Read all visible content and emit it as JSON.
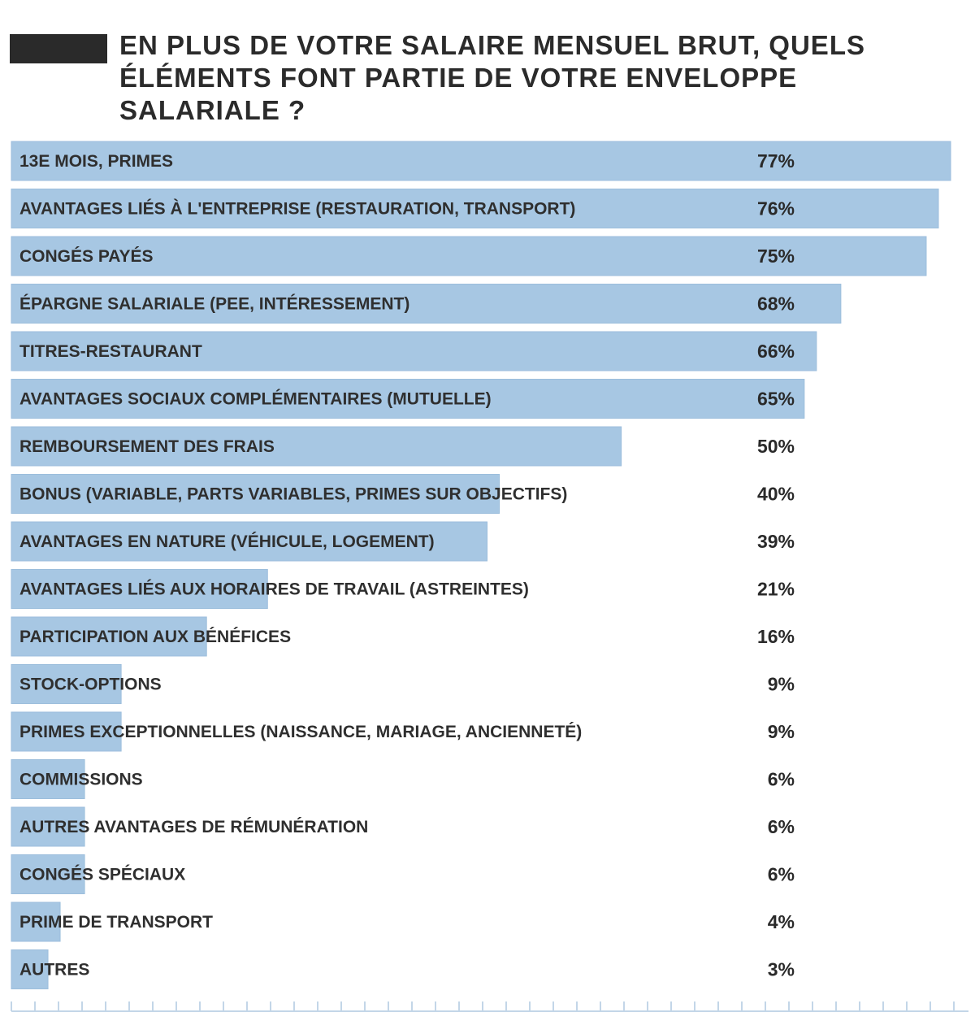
{
  "header": {
    "title": "En plus de votre salaire mensuel brut, quels éléments font partie de votre enveloppe salariale ?",
    "source": ""
  },
  "colors": {
    "bar": "#a7c7e3",
    "bar_edge": "#9cbedc",
    "text": "#2f2f2f",
    "tick": "#c3d6e8"
  },
  "chart_data": {
    "type": "bar",
    "orientation": "horizontal",
    "title": "En plus de votre salaire mensuel brut, quels éléments font partie de votre enveloppe salariale ?",
    "unit": "%",
    "xlim": [
      0,
      100
    ],
    "grid": false,
    "legend": "none",
    "categories": [
      "13e mois, primes",
      "Avantages liés à l'entreprise (restauration, transport)",
      "Congés payés",
      "Épargne salariale (PEE, intéressement)",
      "Titres-restaurant",
      "Avantages sociaux complémentaires (mutuelle)",
      "Remboursement des frais",
      "Bonus (variable, parts variables, primes sur objectifs)",
      "Avantages en nature (véhicule, logement)",
      "Avantages liés aux horaires de travail (astreintes)",
      "Participation aux bénéfices",
      "Stock-options",
      "Primes exceptionnelles (naissance, mariage, ancienneté)",
      "Commissions",
      "Autres avantages de rémunération",
      "Congés spéciaux",
      "Prime de transport",
      "Autres"
    ],
    "values": [
      77,
      76,
      75,
      68,
      66,
      65,
      50,
      40,
      39,
      21,
      16,
      9,
      9,
      6,
      6,
      6,
      4,
      3
    ]
  }
}
